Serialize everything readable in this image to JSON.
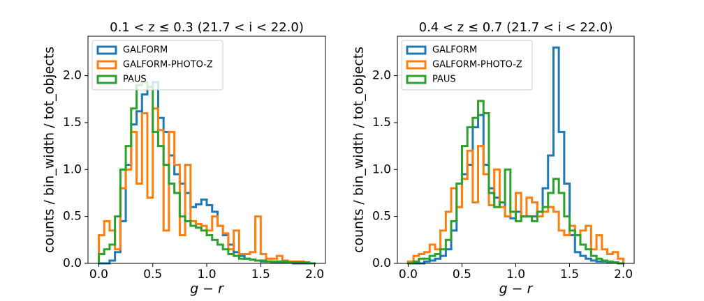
{
  "chart_data": [
    {
      "type": "histogram",
      "title": "0.1 < z ≤ 0.3  (21.7 < i < 22.0)",
      "x_label": "g − r",
      "y_label": "counts / bin_width / tot_objects",
      "bins": [
        0.0,
        0.05,
        0.1,
        0.15,
        0.2,
        0.25,
        0.3,
        0.35,
        0.4,
        0.45,
        0.5,
        0.55,
        0.6,
        0.65,
        0.7,
        0.75,
        0.8,
        0.85,
        0.9,
        0.95,
        1.0,
        1.05,
        1.1,
        1.15,
        1.2,
        1.25,
        1.3,
        1.35,
        1.4,
        1.45,
        1.5,
        1.55,
        1.6,
        1.65,
        1.7,
        1.75,
        1.8,
        1.85,
        1.9,
        1.95,
        2.0
      ],
      "series": [
        {
          "name": "GALFORM",
          "color": "#1f77b4",
          "values": [
            0.0,
            0.0,
            0.03,
            0.12,
            0.45,
            1.05,
            1.48,
            1.62,
            1.8,
            1.88,
            1.93,
            1.55,
            1.4,
            1.15,
            0.95,
            0.85,
            0.75,
            0.6,
            0.63,
            0.68,
            0.62,
            0.55,
            0.4,
            0.3,
            0.2,
            0.12,
            0.08,
            0.05,
            0.04,
            0.03,
            0.02,
            0.02,
            0.01,
            0.01,
            0.01,
            0.01,
            0,
            0,
            0,
            0
          ]
        },
        {
          "name": "GALFORM-PHOTO-Z",
          "color": "#ff7f0e",
          "values": [
            0.3,
            0.45,
            0.35,
            0.15,
            0.8,
            1.0,
            1.4,
            0.85,
            1.6,
            0.7,
            1.65,
            1.42,
            0.35,
            1.4,
            1.05,
            0.3,
            1.05,
            0.45,
            0.42,
            0.4,
            0.35,
            0.5,
            0.4,
            0.32,
            0.15,
            0.35,
            0.1,
            0.1,
            0.12,
            0.5,
            0.1,
            0.05,
            0.05,
            0.08,
            0.03,
            0.02,
            0.02,
            0.02,
            0.01,
            0
          ]
        },
        {
          "name": "PAUS",
          "color": "#2ca02c",
          "values": [
            0.1,
            0.15,
            0.2,
            0.5,
            1.0,
            1.25,
            1.65,
            1.9,
            1.93,
            1.88,
            1.4,
            1.25,
            1.05,
            0.85,
            0.75,
            0.5,
            0.45,
            0.4,
            0.38,
            0.35,
            0.3,
            0.25,
            0.2,
            0.15,
            0.1,
            0.08,
            0.05,
            0.05,
            0.04,
            0.03,
            0.03,
            0.02,
            0.02,
            0.02,
            0.02,
            0.01,
            0.01,
            0.01,
            0.01,
            0
          ]
        }
      ],
      "xlim": [
        -0.1,
        2.1
      ],
      "ylim": [
        0,
        2.42
      ],
      "xticks": [
        {
          "value": 0,
          "label": "0.0"
        },
        {
          "value": 0.5,
          "label": "0.5"
        },
        {
          "value": 1,
          "label": "1.0"
        },
        {
          "value": 1.5,
          "label": "1.5"
        },
        {
          "value": 2,
          "label": "2.0"
        }
      ],
      "yticks": [
        {
          "value": 0,
          "label": "0.0"
        },
        {
          "value": 0.5,
          "label": "0.5"
        },
        {
          "value": 1,
          "label": "1.0"
        },
        {
          "value": 1.5,
          "label": "1.5"
        },
        {
          "value": 2,
          "label": "2.0"
        }
      ],
      "legend": "upper left",
      "grid": false
    },
    {
      "type": "histogram",
      "title": "0.4 < z ≤ 0.7  (21.7 < i < 22.0)",
      "x_label": "g − r",
      "y_label": "counts / bin_width / tot_objects",
      "bins": [
        0.0,
        0.05,
        0.1,
        0.15,
        0.2,
        0.25,
        0.3,
        0.35,
        0.4,
        0.45,
        0.5,
        0.55,
        0.6,
        0.65,
        0.7,
        0.75,
        0.8,
        0.85,
        0.9,
        0.95,
        1.0,
        1.05,
        1.1,
        1.15,
        1.2,
        1.25,
        1.3,
        1.35,
        1.4,
        1.45,
        1.5,
        1.55,
        1.6,
        1.65,
        1.7,
        1.75,
        1.8,
        1.85,
        1.9,
        1.95,
        2.0
      ],
      "series": [
        {
          "name": "GALFORM",
          "color": "#1f77b4",
          "values": [
            0,
            0,
            0,
            0.02,
            0.03,
            0.05,
            0.08,
            0.15,
            0.35,
            0.6,
            0.95,
            1.05,
            1.45,
            1.58,
            1.05,
            0.8,
            0.7,
            0.65,
            0.5,
            0.48,
            0.55,
            0.5,
            0.5,
            0.5,
            0.55,
            0.8,
            1.15,
            2.3,
            1.4,
            0.85,
            0.3,
            0.12,
            0.08,
            0.05,
            0.03,
            0.02,
            0.02,
            0.01,
            0.01,
            0
          ]
        },
        {
          "name": "GALFORM-PHOTO-Z",
          "color": "#ff7f0e",
          "values": [
            0.02,
            0.08,
            0.1,
            0.12,
            0.2,
            0.15,
            0.35,
            0.55,
            0.8,
            0.6,
            0.9,
            1.2,
            0.65,
            1.25,
            0.95,
            0.62,
            1.0,
            0.6,
            0.5,
            0.55,
            0.75,
            0.5,
            0.7,
            0.65,
            0.5,
            0.55,
            0.6,
            0.55,
            0.35,
            0.3,
            0.4,
            0.3,
            0.35,
            0.4,
            0.15,
            0.3,
            0.15,
            0.1,
            0.12,
            0.05
          ]
        },
        {
          "name": "PAUS",
          "color": "#2ca02c",
          "values": [
            0,
            0.02,
            0.05,
            0.05,
            0.08,
            0.1,
            0.15,
            0.25,
            0.45,
            0.85,
            1.25,
            1.45,
            1.55,
            1.73,
            1.6,
            0.75,
            0.6,
            0.65,
            1.0,
            0.55,
            0.45,
            0.5,
            0.5,
            0.45,
            0.55,
            0.6,
            0.75,
            0.9,
            0.75,
            0.5,
            0.35,
            0.3,
            0.2,
            0.15,
            0.08,
            0.05,
            0.03,
            0.02,
            0.01,
            0
          ]
        }
      ],
      "xlim": [
        -0.1,
        2.1
      ],
      "ylim": [
        0,
        2.42
      ],
      "xticks": [
        {
          "value": 0,
          "label": "0.0"
        },
        {
          "value": 0.5,
          "label": "0.5"
        },
        {
          "value": 1,
          "label": "1.0"
        },
        {
          "value": 1.5,
          "label": "1.5"
        },
        {
          "value": 2,
          "label": "2.0"
        }
      ],
      "yticks": [
        {
          "value": 0,
          "label": "0.0"
        },
        {
          "value": 0.5,
          "label": "0.5"
        },
        {
          "value": 1,
          "label": "1.0"
        },
        {
          "value": 1.5,
          "label": "1.5"
        },
        {
          "value": 2,
          "label": "2.0"
        }
      ],
      "legend": "upper left",
      "grid": false
    }
  ]
}
